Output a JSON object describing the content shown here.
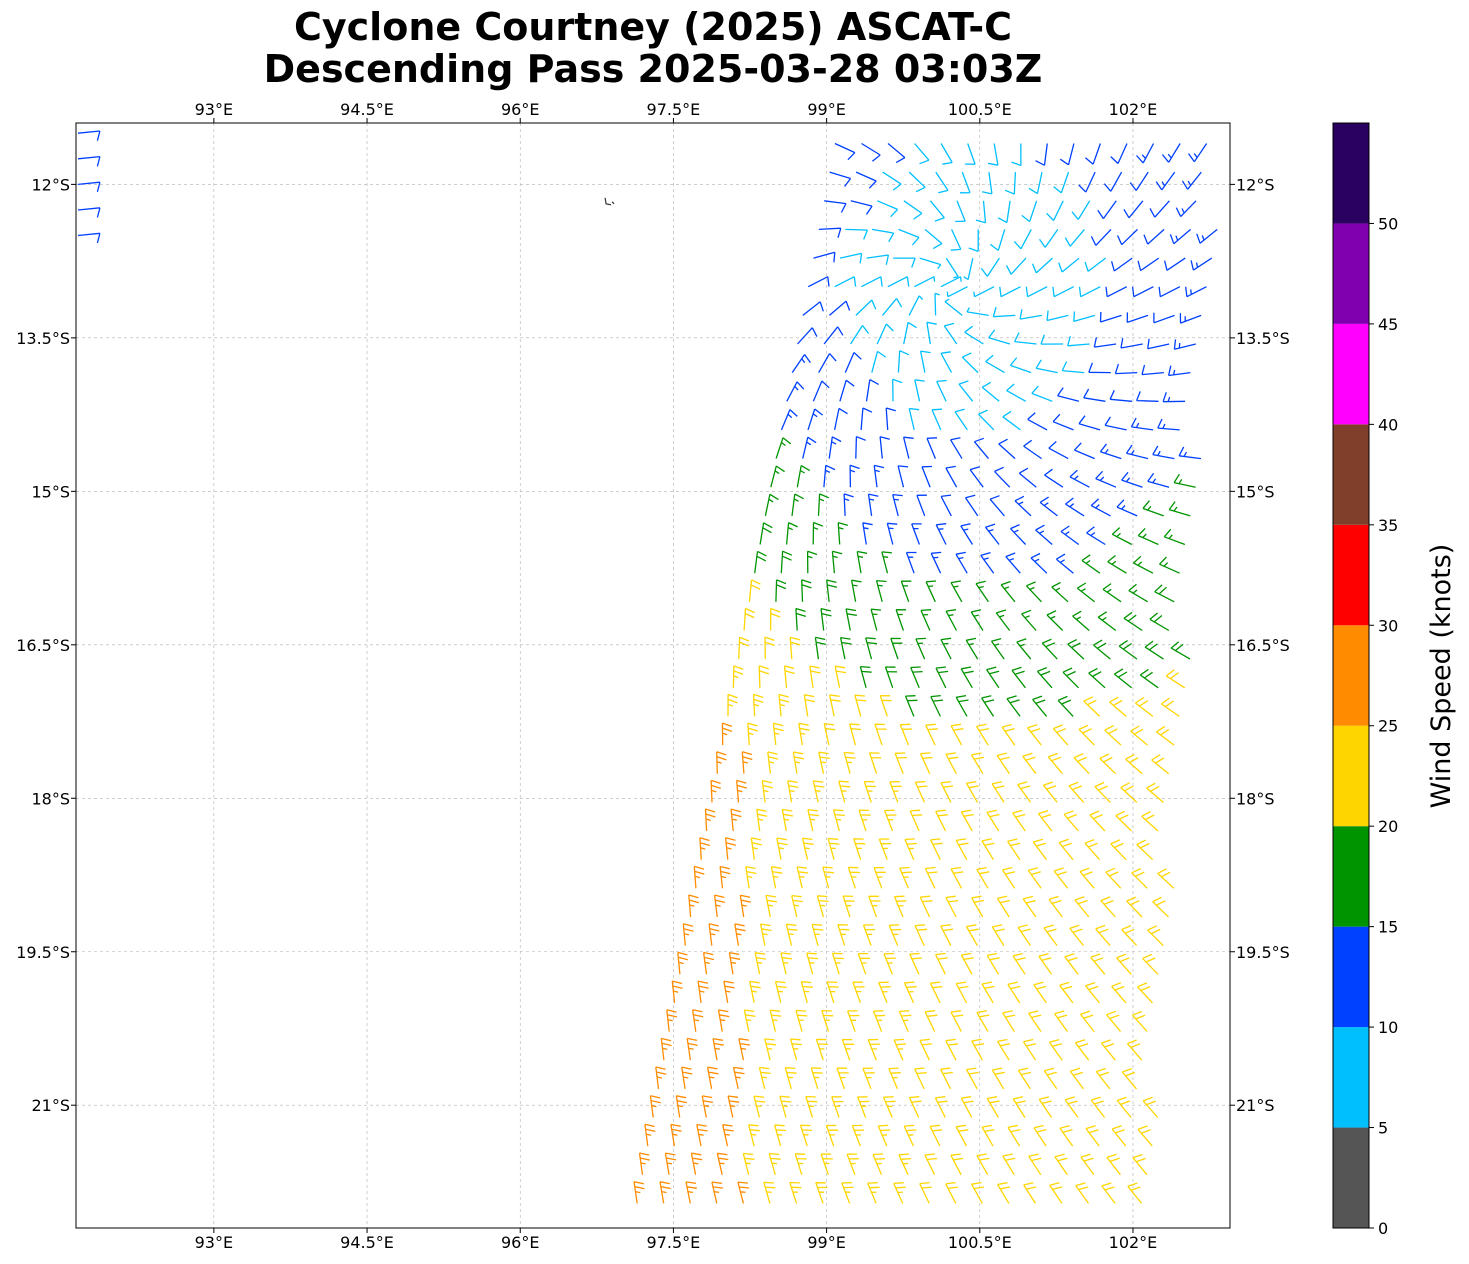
{
  "title": {
    "line1": "Cyclone Courtney (2025) ASCAT-C",
    "line2": "Descending Pass 2025-03-28 03:03Z"
  },
  "map": {
    "lon_range": [
      91.65,
      102.95
    ],
    "lat_range": [
      -22.2,
      -11.4
    ],
    "lon_ticks": [
      {
        "value": 93.0,
        "label": "93°E"
      },
      {
        "value": 94.5,
        "label": "94.5°E"
      },
      {
        "value": 96.0,
        "label": "96°E"
      },
      {
        "value": 97.5,
        "label": "97.5°E"
      },
      {
        "value": 99.0,
        "label": "99°E"
      },
      {
        "value": 100.5,
        "label": "100.5°E"
      },
      {
        "value": 102.0,
        "label": "102°E"
      }
    ],
    "lat_ticks": [
      {
        "value": -12.0,
        "label": "12°S"
      },
      {
        "value": -13.5,
        "label": "13.5°S"
      },
      {
        "value": -15.0,
        "label": "15°S"
      },
      {
        "value": -16.5,
        "label": "16.5°S"
      },
      {
        "value": -18.0,
        "label": "18°S"
      },
      {
        "value": -19.5,
        "label": "19.5°S"
      },
      {
        "value": -21.0,
        "label": "21°S"
      }
    ],
    "gridlines": true,
    "grid_color": "#b0b0b0",
    "coastline_color": "#333333",
    "island_label_location": "Cocos (Keeling) Islands near 96.9°E 12.2°S"
  },
  "colorbar": {
    "label": "Wind Speed (knots)",
    "ticks": [
      "0",
      "5",
      "10",
      "15",
      "20",
      "25",
      "30",
      "35",
      "40",
      "45",
      "50"
    ],
    "bins": [
      {
        "min": 0,
        "max": 5,
        "color": "#555555"
      },
      {
        "min": 5,
        "max": 10,
        "color": "#00bfff"
      },
      {
        "min": 10,
        "max": 15,
        "color": "#0040ff"
      },
      {
        "min": 15,
        "max": 20,
        "color": "#009400"
      },
      {
        "min": 20,
        "max": 25,
        "color": "#ffd500"
      },
      {
        "min": 25,
        "max": 30,
        "color": "#ff8c00"
      },
      {
        "min": 30,
        "max": 35,
        "color": "#ff0000"
      },
      {
        "min": 35,
        "max": 40,
        "color": "#803f2a"
      },
      {
        "min": 40,
        "max": 45,
        "color": "#ff00ff"
      },
      {
        "min": 45,
        "max": 50,
        "color": "#8000b0"
      },
      {
        "min": 50,
        "max": 55,
        "color": "#2a0060"
      }
    ]
  },
  "chart_data": {
    "type": "wind-barbs",
    "units": "knots",
    "cyclone_center_approx": {
      "lon": 100.2,
      "lat": -13.0
    },
    "swath": {
      "corners": [
        {
          "lon": 99.0,
          "lat": -11.5
        },
        {
          "lon": 102.9,
          "lat": -11.5
        },
        {
          "lon": 102.2,
          "lat": -22.2
        },
        {
          "lon": 97.0,
          "lat": -22.2
        }
      ]
    },
    "edge_fragment": {
      "lon_range": [
        91.65,
        91.95
      ],
      "lat_range": [
        -12.7,
        -11.4
      ],
      "speed": 12
    }
  }
}
